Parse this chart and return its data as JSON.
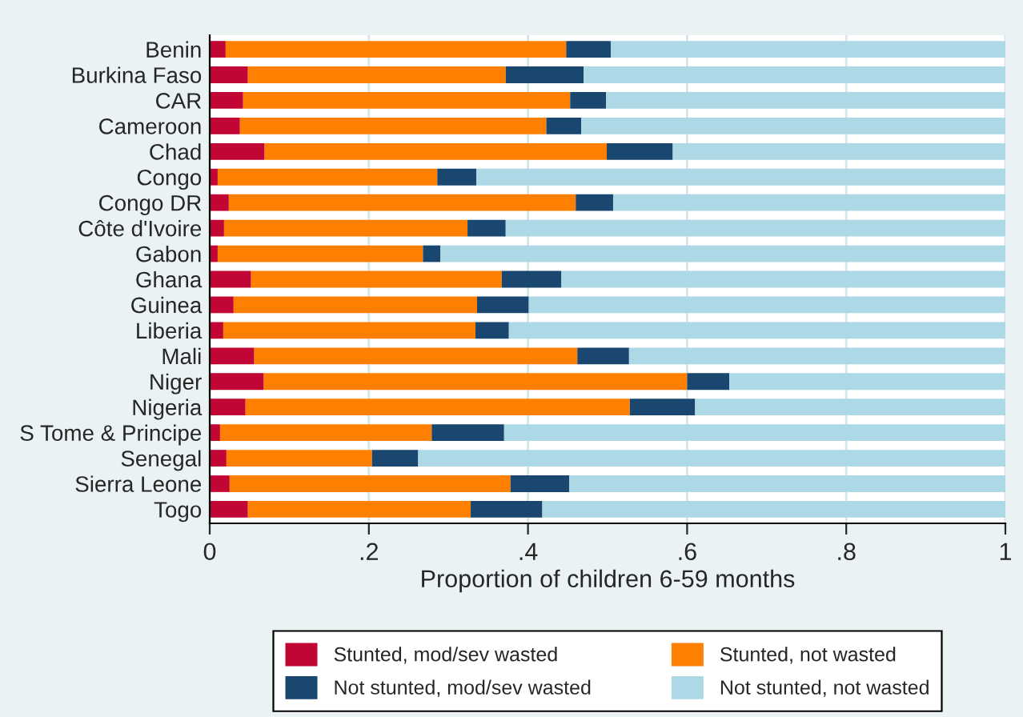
{
  "chart_data": {
    "type": "bar",
    "orientation": "horizontal",
    "stacked": true,
    "xlabel": "Proportion of children 6-59 months",
    "categories": [
      "Benin",
      "Burkina Faso",
      "CAR",
      "Cameroon",
      "Chad",
      "Congo",
      "Congo DR",
      "Côte d'Ivoire",
      "Gabon",
      "Ghana",
      "Guinea",
      "Liberia",
      "Mali",
      "Niger",
      "Nigeria",
      "S Tome & Principe",
      "Senegal",
      "Sierra Leone",
      "Togo"
    ],
    "series": [
      {
        "name": "Stunted, mod/sev wasted",
        "color": "#c10534",
        "values": [
          0.02,
          0.048,
          0.042,
          0.038,
          0.069,
          0.01,
          0.024,
          0.018,
          0.01,
          0.052,
          0.03,
          0.017,
          0.056,
          0.068,
          0.045,
          0.013,
          0.021,
          0.025,
          0.048
        ]
      },
      {
        "name": "Stunted, not wasted",
        "color": "#ff7f00",
        "values": [
          0.428,
          0.324,
          0.411,
          0.385,
          0.43,
          0.276,
          0.436,
          0.306,
          0.258,
          0.315,
          0.306,
          0.317,
          0.406,
          0.532,
          0.483,
          0.266,
          0.183,
          0.353,
          0.28
        ]
      },
      {
        "name": "Not stunted, mod/sev wasted",
        "color": "#1a476f",
        "values": [
          0.056,
          0.098,
          0.045,
          0.044,
          0.083,
          0.049,
          0.047,
          0.048,
          0.022,
          0.075,
          0.065,
          0.042,
          0.065,
          0.053,
          0.082,
          0.091,
          0.058,
          0.074,
          0.09
        ]
      },
      {
        "name": "Not stunted, not wasted",
        "color": "#add8e6",
        "values": [
          0.496,
          0.53,
          0.502,
          0.533,
          0.418,
          0.665,
          0.493,
          0.628,
          0.71,
          0.558,
          0.599,
          0.624,
          0.473,
          0.347,
          0.39,
          0.63,
          0.738,
          0.548,
          0.582
        ]
      }
    ],
    "xlim": [
      0,
      1
    ],
    "xticks": [
      0,
      {
        "value": 0.2,
        "label": ".2"
      },
      {
        "value": 0.4,
        "label": ".4"
      },
      {
        "value": 0.6,
        "label": ".6"
      },
      {
        "value": 0.8,
        "label": ".8"
      },
      1
    ],
    "grid": "x",
    "legend": "bottom"
  }
}
